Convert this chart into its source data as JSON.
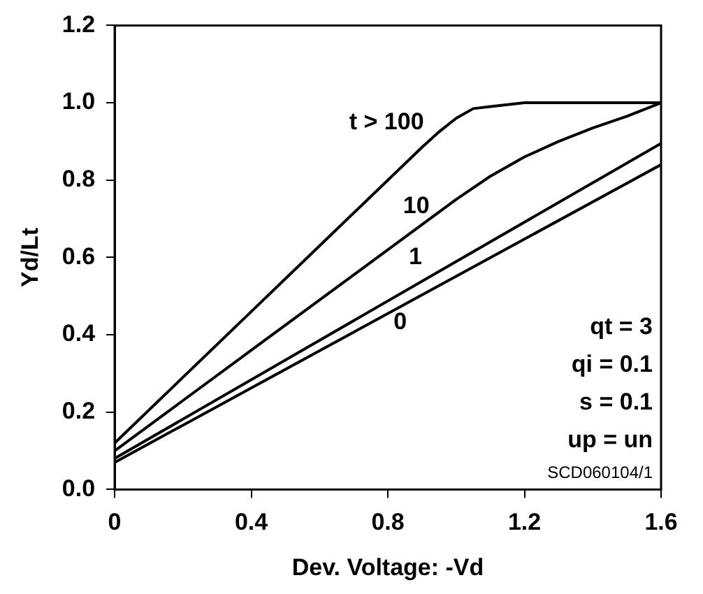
{
  "chart_data": {
    "type": "line",
    "xlabel": "Dev. Voltage: -Vd",
    "ylabel": "Yd/Lt",
    "xlim": [
      0,
      1.6
    ],
    "xticks": [
      0,
      0.4,
      0.8,
      1.2,
      1.6
    ],
    "ylim": [
      0,
      1.2
    ],
    "yticks": [
      {
        "value": 0,
        "label": "0.0"
      },
      {
        "value": 0.2,
        "label": "0.2"
      },
      {
        "value": 0.4,
        "label": "0.4"
      },
      {
        "value": 0.6,
        "label": "0.6"
      },
      {
        "value": 0.8,
        "label": "0.8"
      },
      {
        "value": 1,
        "label": "1.0"
      },
      {
        "value": 1.2,
        "label": "1.2"
      }
    ],
    "grid": false,
    "legend": false,
    "marker": "none",
    "line_style": "solid",
    "series": [
      {
        "name": "t > 100",
        "color": "#000000",
        "x": [
          0,
          0.2,
          0.4,
          0.6,
          0.8,
          0.9,
          0.95,
          1.0,
          1.05,
          1.1,
          1.2,
          1.4,
          1.6
        ],
        "values": [
          0.12,
          0.29,
          0.46,
          0.63,
          0.8,
          0.885,
          0.925,
          0.96,
          0.985,
          0.99,
          1.0,
          1.0,
          1.0
        ]
      },
      {
        "name": "10",
        "color": "#000000",
        "x": [
          0,
          0.4,
          0.8,
          1.0,
          1.1,
          1.2,
          1.3,
          1.4,
          1.5,
          1.6
        ],
        "values": [
          0.1,
          0.36,
          0.62,
          0.75,
          0.81,
          0.86,
          0.9,
          0.935,
          0.965,
          1.0
        ]
      },
      {
        "name": "1",
        "color": "#000000",
        "x": [
          0,
          1.6
        ],
        "values": [
          0.08,
          0.895
        ]
      },
      {
        "name": "0",
        "color": "#000000",
        "x": [
          0,
          1.6
        ],
        "values": [
          0.07,
          0.84
        ]
      }
    ],
    "annotations": [
      "qt = 3",
      "qi = 0.1",
      "s = 0.1",
      "up = un",
      "SCD060104/1"
    ]
  }
}
